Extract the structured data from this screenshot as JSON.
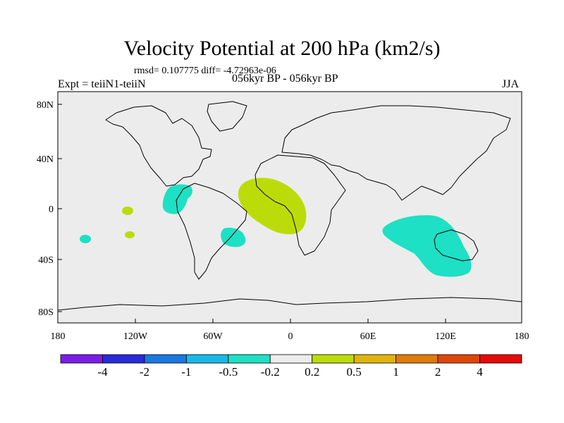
{
  "title": "Velocity Potential at 200 hPa (km2/s)",
  "stats_line": "rmsd= 0.107775 diff= -4.72963e-06",
  "left_label": "Expt = teiiN1-teiiN",
  "center_label": "056kyr BP - 056kyr BP",
  "right_label": "JJA",
  "lat_ticks": [
    "80N",
    "40N",
    "0",
    "40S",
    "80S"
  ],
  "lon_ticks": [
    "180",
    "120W",
    "60W",
    "0",
    "60E",
    "120E",
    "180"
  ],
  "colorbar": {
    "labels": [
      "-4",
      "-2",
      "-1",
      "-0.5",
      "-0.2",
      "0.2",
      "0.5",
      "1",
      "2",
      "4"
    ],
    "colors": [
      "#7a1ee6",
      "#2a2ad8",
      "#1a78e0",
      "#1ab8e6",
      "#1ee0c4",
      "#ececec",
      "#bcdc0a",
      "#e0b40a",
      "#e07a0a",
      "#e0460a",
      "#e60a0a"
    ]
  },
  "map_background": "#ececec",
  "anomalies": [
    {
      "name": "central-america-negative",
      "color": "#1ee0c4"
    },
    {
      "name": "atlantic-africa-positive",
      "color": "#bcdc0a"
    },
    {
      "name": "south-america-negative",
      "color": "#1ee0c4"
    },
    {
      "name": "indian-ocean-australia-negative",
      "color": "#1ee0c4"
    },
    {
      "name": "pacific-positive-north",
      "color": "#bcdc0a"
    },
    {
      "name": "pacific-positive-south",
      "color": "#bcdc0a"
    },
    {
      "name": "pacific-negative-small",
      "color": "#1ee0c4"
    }
  ]
}
